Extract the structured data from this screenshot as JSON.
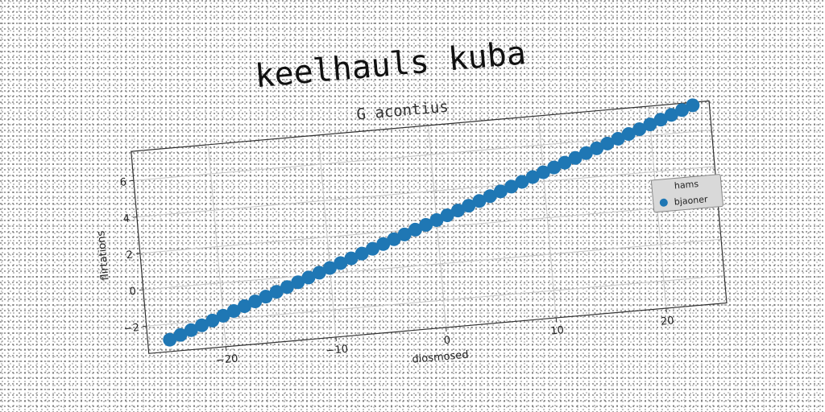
{
  "chart_data": {
    "type": "scatter",
    "suptitle": "keelhauls kuba",
    "title": "G acontius",
    "xlabel": "diosmosed",
    "ylabel": "flirtations",
    "xlim": [
      -27,
      25.5
    ],
    "ylim": [
      -3.5,
      7.6
    ],
    "xticks": [
      -20,
      -10,
      0,
      10,
      20
    ],
    "yticks": [
      -2,
      0,
      2,
      4,
      6
    ],
    "xtick_labels": [
      "−20",
      "−10",
      "0",
      "10",
      "20"
    ],
    "ytick_labels": [
      "−2",
      "0",
      "2",
      "4",
      "6"
    ],
    "grid": true,
    "legend": {
      "title": "hams",
      "placement": "right",
      "entries": [
        "bjaoner"
      ]
    },
    "series": [
      {
        "name": "bjaoner",
        "color": "#1f77b4",
        "marker": "circle",
        "x": [
          -25.0,
          -24.0,
          -23.0,
          -22.0,
          -21.0,
          -20.0,
          -19.0,
          -18.0,
          -17.0,
          -16.0,
          -15.0,
          -14.0,
          -13.0,
          -12.0,
          -11.0,
          -10.0,
          -9.0,
          -8.0,
          -7.0,
          -6.0,
          -5.0,
          -4.0,
          -3.0,
          -2.0,
          -1.0,
          0.0,
          1.0,
          2.0,
          3.0,
          4.0,
          5.0,
          6.0,
          7.0,
          8.0,
          9.0,
          10.0,
          11.0,
          12.0,
          13.0,
          14.0,
          15.0,
          16.0,
          17.0,
          18.0,
          19.0,
          20.0,
          21.0,
          22.0,
          23.0,
          24.0
        ],
        "y": [
          -2.85,
          -2.64,
          -2.43,
          -2.22,
          -2.01,
          -1.8,
          -1.59,
          -1.38,
          -1.17,
          -0.96,
          -0.75,
          -0.54,
          -0.33,
          -0.12,
          0.09,
          0.3,
          0.51,
          0.72,
          0.93,
          1.14,
          1.35,
          1.56,
          1.77,
          1.98,
          2.19,
          2.4,
          2.61,
          2.82,
          3.03,
          3.24,
          3.45,
          3.66,
          3.87,
          4.08,
          4.29,
          4.5,
          4.71,
          4.92,
          5.13,
          5.34,
          5.55,
          5.76,
          5.97,
          6.18,
          6.39,
          6.6,
          6.81,
          7.02,
          7.23,
          7.44
        ]
      }
    ]
  }
}
